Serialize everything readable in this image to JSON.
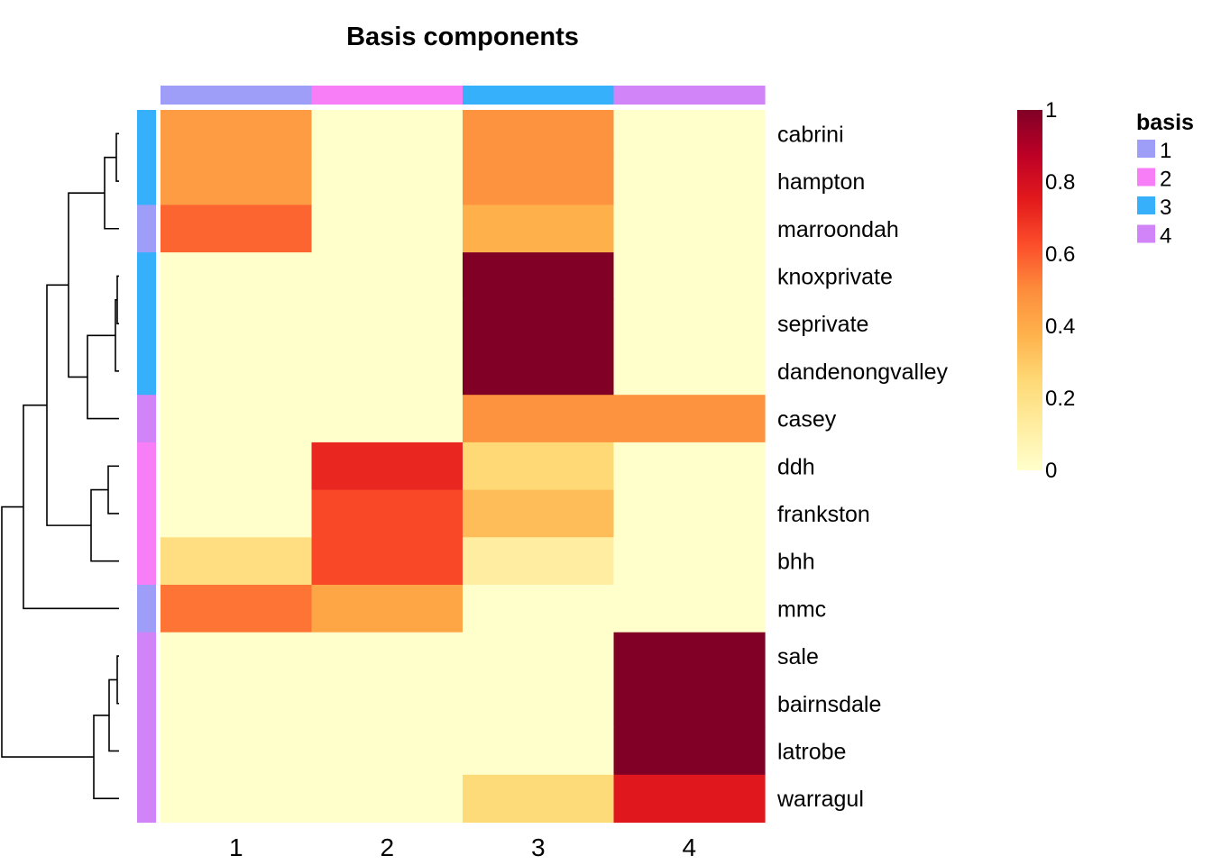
{
  "chart_data": {
    "type": "heatmap",
    "title": "Basis components",
    "columns": [
      "1",
      "2",
      "3",
      "4"
    ],
    "rows": [
      "cabrini",
      "hampton",
      "marroondah",
      "knoxprivate",
      "seprivate",
      "dandenongvalley",
      "casey",
      "ddh",
      "frankston",
      "bhh",
      "mmc",
      "sale",
      "bairnsdale",
      "latrobe",
      "warragul"
    ],
    "values": [
      [
        0.45,
        0.0,
        0.48,
        0.0
      ],
      [
        0.45,
        0.0,
        0.48,
        0.0
      ],
      [
        0.58,
        0.0,
        0.38,
        0.0
      ],
      [
        0.0,
        0.0,
        1.0,
        0.0
      ],
      [
        0.0,
        0.0,
        1.0,
        0.0
      ],
      [
        0.0,
        0.0,
        1.0,
        0.0
      ],
      [
        0.0,
        0.0,
        0.48,
        0.48
      ],
      [
        0.0,
        0.72,
        0.25,
        0.0
      ],
      [
        0.0,
        0.64,
        0.34,
        0.0
      ],
      [
        0.22,
        0.64,
        0.12,
        0.0
      ],
      [
        0.55,
        0.42,
        0.0,
        0.0
      ],
      [
        0.0,
        0.0,
        0.0,
        1.0
      ],
      [
        0.0,
        0.0,
        0.0,
        1.0
      ],
      [
        0.0,
        0.0,
        0.0,
        1.0
      ],
      [
        0.0,
        0.0,
        0.24,
        0.76
      ]
    ],
    "column_basis": [
      "1",
      "2",
      "3",
      "4"
    ],
    "row_basis": [
      "3",
      "3",
      "1",
      "3",
      "3",
      "3",
      "4",
      "2",
      "2",
      "2",
      "1",
      "4",
      "4",
      "4",
      "4"
    ],
    "colorbar": {
      "min": 0,
      "max": 1,
      "ticks": [
        "0",
        "0.2",
        "0.4",
        "0.6",
        "0.8",
        "1"
      ]
    },
    "legend": {
      "title": "basis",
      "placement": "right",
      "entries": [
        {
          "label": "1",
          "color": "#9e9ef8"
        },
        {
          "label": "2",
          "color": "#f77ef7"
        },
        {
          "label": "3",
          "color": "#36b0fb"
        },
        {
          "label": "4",
          "color": "#d084f7"
        }
      ]
    },
    "color_scale": [
      "#ffffcc",
      "#ffeda0",
      "#fed976",
      "#feb24c",
      "#fd8d3c",
      "#fc4e2a",
      "#e31a1c",
      "#bd0026",
      "#800026"
    ],
    "row_dendrogram": true
  }
}
